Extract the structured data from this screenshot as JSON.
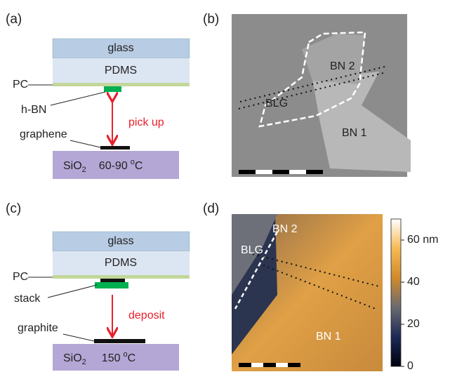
{
  "panel_a": {
    "label": "(a)",
    "glass": "glass",
    "pdms": "PDMS",
    "pc": "PC",
    "flake": "h-BN",
    "action": "pick up",
    "target": "graphene",
    "substrate": "SiO",
    "substrate_sub": "2",
    "temperature": "60-90",
    "temperature_sup": "o",
    "temperature_unit": "C"
  },
  "panel_b": {
    "label": "(b)",
    "labels": [
      "BN 2",
      "BLG",
      "BN 1"
    ]
  },
  "panel_c": {
    "label": "(c)",
    "glass": "glass",
    "pdms": "PDMS",
    "pc": "PC",
    "flake": "stack",
    "action": "deposit",
    "target": "graphite",
    "substrate": "SiO",
    "substrate_sub": "2",
    "temperature": "150",
    "temperature_sup": "o",
    "temperature_unit": "C"
  },
  "panel_d": {
    "label": "(d)",
    "labels": [
      "BN 2",
      "BLG",
      "BN 1"
    ],
    "colorbar": {
      "range": [
        0,
        70
      ],
      "ticks": [
        {
          "value": 60,
          "label": "60 nm"
        },
        40,
        20,
        0
      ]
    }
  }
}
